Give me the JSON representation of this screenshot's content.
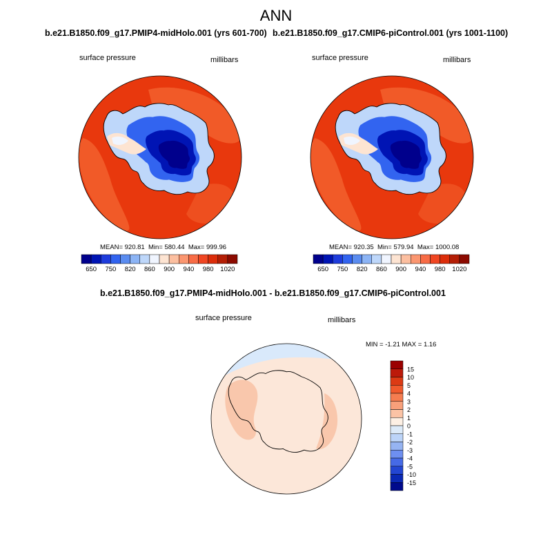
{
  "title": "ANN",
  "panels": [
    {
      "title": "b.e21.B1850.f09_g17.PMIP4-midHolo.001 (yrs 601-700)",
      "left_label": "surface pressure",
      "right_label": "millibars",
      "stats": {
        "mean_label": "MEAN=",
        "mean": "920.81",
        "min_label": "Min=",
        "min": "580.44",
        "max_label": "Max=",
        "max": "999.96"
      }
    },
    {
      "title": "b.e21.B1850.f09_g17.CMIP6-piControl.001 (yrs 1001-1100)",
      "left_label": "surface pressure",
      "right_label": "millibars",
      "stats": {
        "mean_label": "MEAN=",
        "mean": "920.35",
        "min_label": "Min=",
        "min": "579.94",
        "max_label": "Max=",
        "max": "1000.08"
      }
    }
  ],
  "abs_colorbar": {
    "tick_labels": [
      "650",
      "750",
      "820",
      "860",
      "900",
      "940",
      "980",
      "1020"
    ],
    "colors": [
      "#00008c",
      "#0014b4",
      "#1e3cdc",
      "#3264f0",
      "#5a8cf0",
      "#8cb4f5",
      "#bed7fa",
      "#f0f5ff",
      "#fde4d2",
      "#fcbfa0",
      "#fb9670",
      "#f86c46",
      "#f04622",
      "#dc2d0a",
      "#b41e05",
      "#8c0a00"
    ]
  },
  "diff_panel": {
    "title": "b.e21.B1850.f09_g17.PMIP4-midHolo.001 - b.e21.B1850.f09_g17.CMIP6-piControl.001",
    "left_label": "surface pressure",
    "right_label": "millibars",
    "minmax_text": "MIN =  -1.21 MAX =   1.16"
  },
  "diff_colorbar": {
    "tick_labels": [
      "15",
      "10",
      "5",
      "4",
      "3",
      "2",
      "1",
      "0",
      "-1",
      "-2",
      "-3",
      "-4",
      "-5",
      "-10",
      "-15"
    ],
    "colors": [
      "#9b0000",
      "#bc1a0a",
      "#dc3a14",
      "#f05a2d",
      "#f57d50",
      "#f8a07a",
      "#fbc3a5",
      "#fdf0e4",
      "#dceaf8",
      "#bcd4f8",
      "#96b4f2",
      "#6e8ff0",
      "#466ae6",
      "#2346d2",
      "#0a28b4",
      "#000a8c"
    ]
  },
  "map_colors": {
    "ocean_high": "#e8380d",
    "ocean_band": "#f15a28",
    "land_low": "#00008c",
    "diff_base": "#fce7d9",
    "diff_pos": "#f9c7ac",
    "diff_neg": "#d9e9fb"
  }
}
